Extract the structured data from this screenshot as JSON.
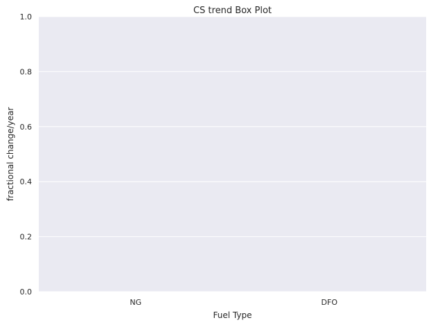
{
  "chart_data": {
    "type": "box",
    "title": "CS trend Box Plot",
    "xlabel": "Fuel Type",
    "ylabel": "fractional change/year",
    "categories": [
      "NG",
      "DFO"
    ],
    "series": [],
    "ylim": [
      0.0,
      1.0
    ],
    "yticks": [
      0.0,
      0.2,
      0.4,
      0.6,
      0.8,
      1.0
    ],
    "ytick_labels": [
      "0.0",
      "0.2",
      "0.4",
      "0.6",
      "0.8",
      "1.0"
    ],
    "grid": true,
    "legend": "none"
  },
  "colors": {
    "plot_background": "#eaeaf2",
    "grid": "#ffffff",
    "text": "#262626"
  }
}
